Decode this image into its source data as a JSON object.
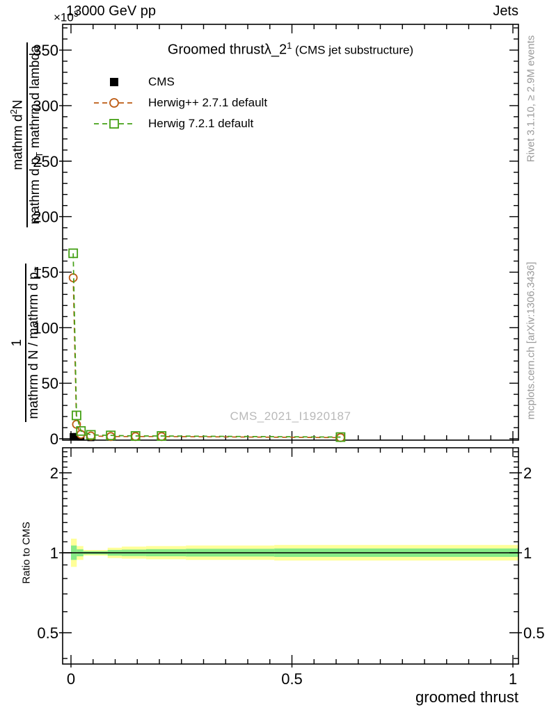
{
  "page": {
    "top_left_label": "13000 GeV pp",
    "top_right_label": "Jets",
    "scale_note_base": "×10",
    "scale_note_exp": "3",
    "watermark": "CMS_2021_I1920187",
    "side_note_top": "Rivet 3.1.10, ≥ 2.9M events",
    "side_note_bottom": "mcplots.cern.ch [arXiv:1306.3436]"
  },
  "title": {
    "part1": "Groomed thrustλ_2",
    "sup": "1",
    "part2": " (CMS jet substructure)"
  },
  "axes": {
    "x_title": "groomed thrust",
    "ratio_y_title": "Ratio to CMS",
    "ylabel": {
      "frac1_num": "1",
      "frac1_den_pre": "mathrm d N / mathrm d p",
      "frac1_den_sub": "T",
      "frac2_num_pre": "mathrm d",
      "frac2_num_sup": "2",
      "frac2_num_post": "N",
      "frac2_den_pre": "mathrm d p",
      "frac2_den_sub": "T",
      "frac2_den_post": " mathrm d lambda"
    }
  },
  "chart_data": [
    {
      "type": "line",
      "panel": "main",
      "title": "Groomed thrustλ_2^1 (CMS jet substructure)",
      "xlabel": "groomed thrust",
      "ylabel": "1/(mathrm dN/mathrm dp_T) mathrm d2N/(mathrm dp_T mathrm dlambda)",
      "y_scale_factor": "×10^3",
      "xlim": [
        -0.019,
        1.0126
      ],
      "ylim": [
        -7,
        373
      ],
      "grid": false,
      "legend_position": "top-left-inside",
      "xticks_major": [
        0,
        0.5,
        1
      ],
      "xtick_labels": [
        "0",
        "0.5",
        "1"
      ],
      "xtick_minor_step": 0.05,
      "yticks_major": [
        0,
        50,
        100,
        150,
        200,
        250,
        300,
        350
      ],
      "ytick_labels": [
        "0",
        "50",
        "100",
        "150",
        "200",
        "250",
        "300",
        "350"
      ],
      "ytick_minor_step": 10,
      "x": [
        0.005,
        0.0125,
        0.0225,
        0.045,
        0.09,
        0.146,
        0.205,
        0.61
      ],
      "series": [
        {
          "name": "CMS",
          "color": "#000000",
          "marker": "filled-square",
          "line": "none",
          "values": [
            2,
            2,
            1.5,
            1,
            1.5,
            1.5,
            1.5,
            1
          ]
        },
        {
          "name": "Herwig++ 2.7.1 default",
          "color": "#bc5a12",
          "marker": "open-circle",
          "line": "dashed",
          "values": [
            145,
            13,
            4,
            2.5,
            2,
            2,
            2,
            1
          ]
        },
        {
          "name": "Herwig 7.2.1 default",
          "color": "#44a015",
          "marker": "open-square",
          "line": "dashed",
          "values": [
            167,
            21,
            7,
            3.5,
            3,
            2.5,
            2.5,
            1.5
          ]
        }
      ]
    },
    {
      "type": "area",
      "panel": "ratio",
      "ylabel": "Ratio to CMS",
      "yscale": "log",
      "xlim": [
        -0.019,
        1.0126
      ],
      "ylim": [
        0.381,
        2.47
      ],
      "yticks_major": [
        0.5,
        1,
        2
      ],
      "ytick_labels": [
        "0.5",
        "1",
        "2"
      ],
      "yticks_minor": [
        0.4,
        0.6,
        0.7,
        0.8,
        0.9,
        1.1,
        1.2,
        1.3,
        1.4,
        1.5,
        1.6,
        1.7,
        1.8,
        1.9,
        2.1,
        2.2,
        2.3,
        2.4
      ],
      "reference_line": 1,
      "band_colors": {
        "outer": "#ffff99",
        "inner": "#86ea86"
      },
      "bands": [
        {
          "x0": 0.0,
          "x1": 0.013,
          "outer": [
            0.885,
            1.13
          ],
          "inner": [
            0.94,
            1.065
          ]
        },
        {
          "x0": 0.013,
          "x1": 0.028,
          "outer": [
            0.94,
            1.06
          ],
          "inner": [
            0.97,
            1.03
          ]
        },
        {
          "x0": 0.028,
          "x1": 0.083,
          "outer": [
            0.976,
            1.024
          ],
          "inner": [
            0.986,
            1.014
          ]
        },
        {
          "x0": 0.083,
          "x1": 0.115,
          "outer": [
            0.955,
            1.045
          ],
          "inner": [
            0.975,
            1.025
          ]
        },
        {
          "x0": 0.115,
          "x1": 0.17,
          "outer": [
            0.95,
            1.055
          ],
          "inner": [
            0.972,
            1.028
          ]
        },
        {
          "x0": 0.17,
          "x1": 0.26,
          "outer": [
            0.945,
            1.06
          ],
          "inner": [
            0.97,
            1.032
          ]
        },
        {
          "x0": 0.26,
          "x1": 0.46,
          "outer": [
            0.94,
            1.065
          ],
          "inner": [
            0.968,
            1.035
          ]
        },
        {
          "x0": 0.46,
          "x1": 1.0126,
          "outer": [
            0.935,
            1.07
          ],
          "inner": [
            0.965,
            1.038
          ]
        }
      ]
    }
  ]
}
